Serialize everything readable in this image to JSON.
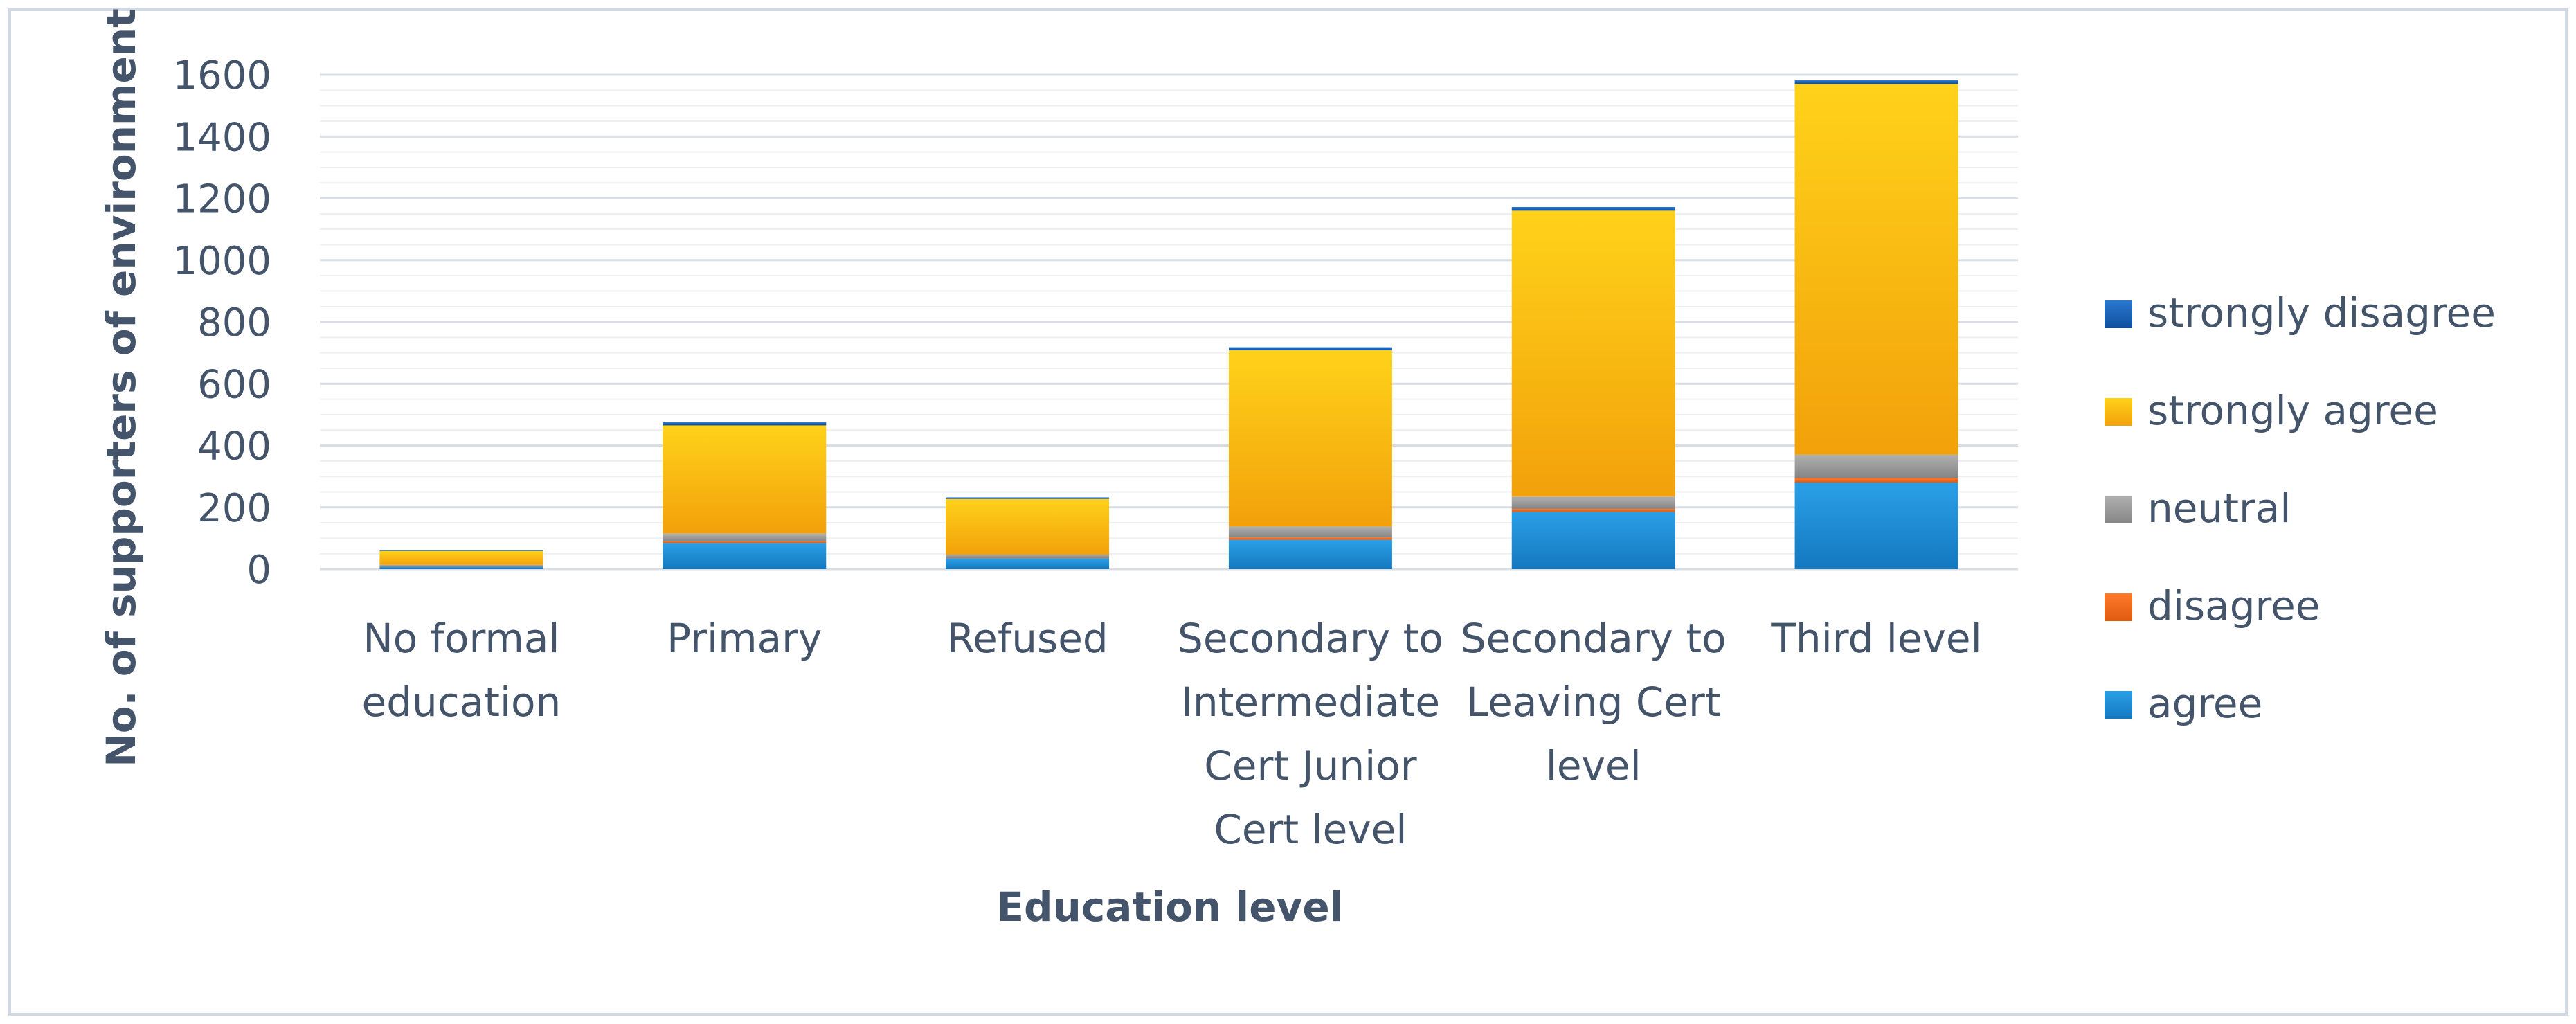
{
  "chart_data": {
    "type": "bar",
    "stacked": true,
    "title": "",
    "xlabel": "Education level",
    "ylabel": "No. of supporters of environment",
    "ylim": [
      0,
      1600
    ],
    "yticks": [
      0,
      200,
      400,
      600,
      800,
      1000,
      1200,
      1400,
      1600
    ],
    "categories": [
      [
        "No formal",
        "education"
      ],
      [
        "Primary"
      ],
      [
        "Refused"
      ],
      [
        "Secondary to",
        "Intermediate",
        "Cert Junior",
        "Cert level"
      ],
      [
        "Secondary to",
        "Leaving Cert",
        "level"
      ],
      [
        "Third level"
      ]
    ],
    "series": [
      {
        "name": "agree",
        "color": "#1f8fd6",
        "values": [
          8,
          85,
          35,
          95,
          185,
          280
        ]
      },
      {
        "name": "disagree",
        "color": "#f26b1d",
        "values": [
          1,
          5,
          2,
          8,
          10,
          15
        ]
      },
      {
        "name": "neutral",
        "color": "#9a9a9a",
        "values": [
          5,
          25,
          10,
          35,
          40,
          75
        ]
      },
      {
        "name": "strongly agree",
        "color": "#f7b90e",
        "values": [
          45,
          350,
          180,
          570,
          925,
          1200
        ]
      },
      {
        "name": "strongly disagree",
        "color": "#1560bd",
        "values": [
          3,
          10,
          5,
          10,
          12,
          12
        ]
      }
    ],
    "legend_order": [
      "strongly disagree",
      "strongly agree",
      "neutral",
      "disagree",
      "agree"
    ],
    "legend_position": "right",
    "grid": true
  }
}
